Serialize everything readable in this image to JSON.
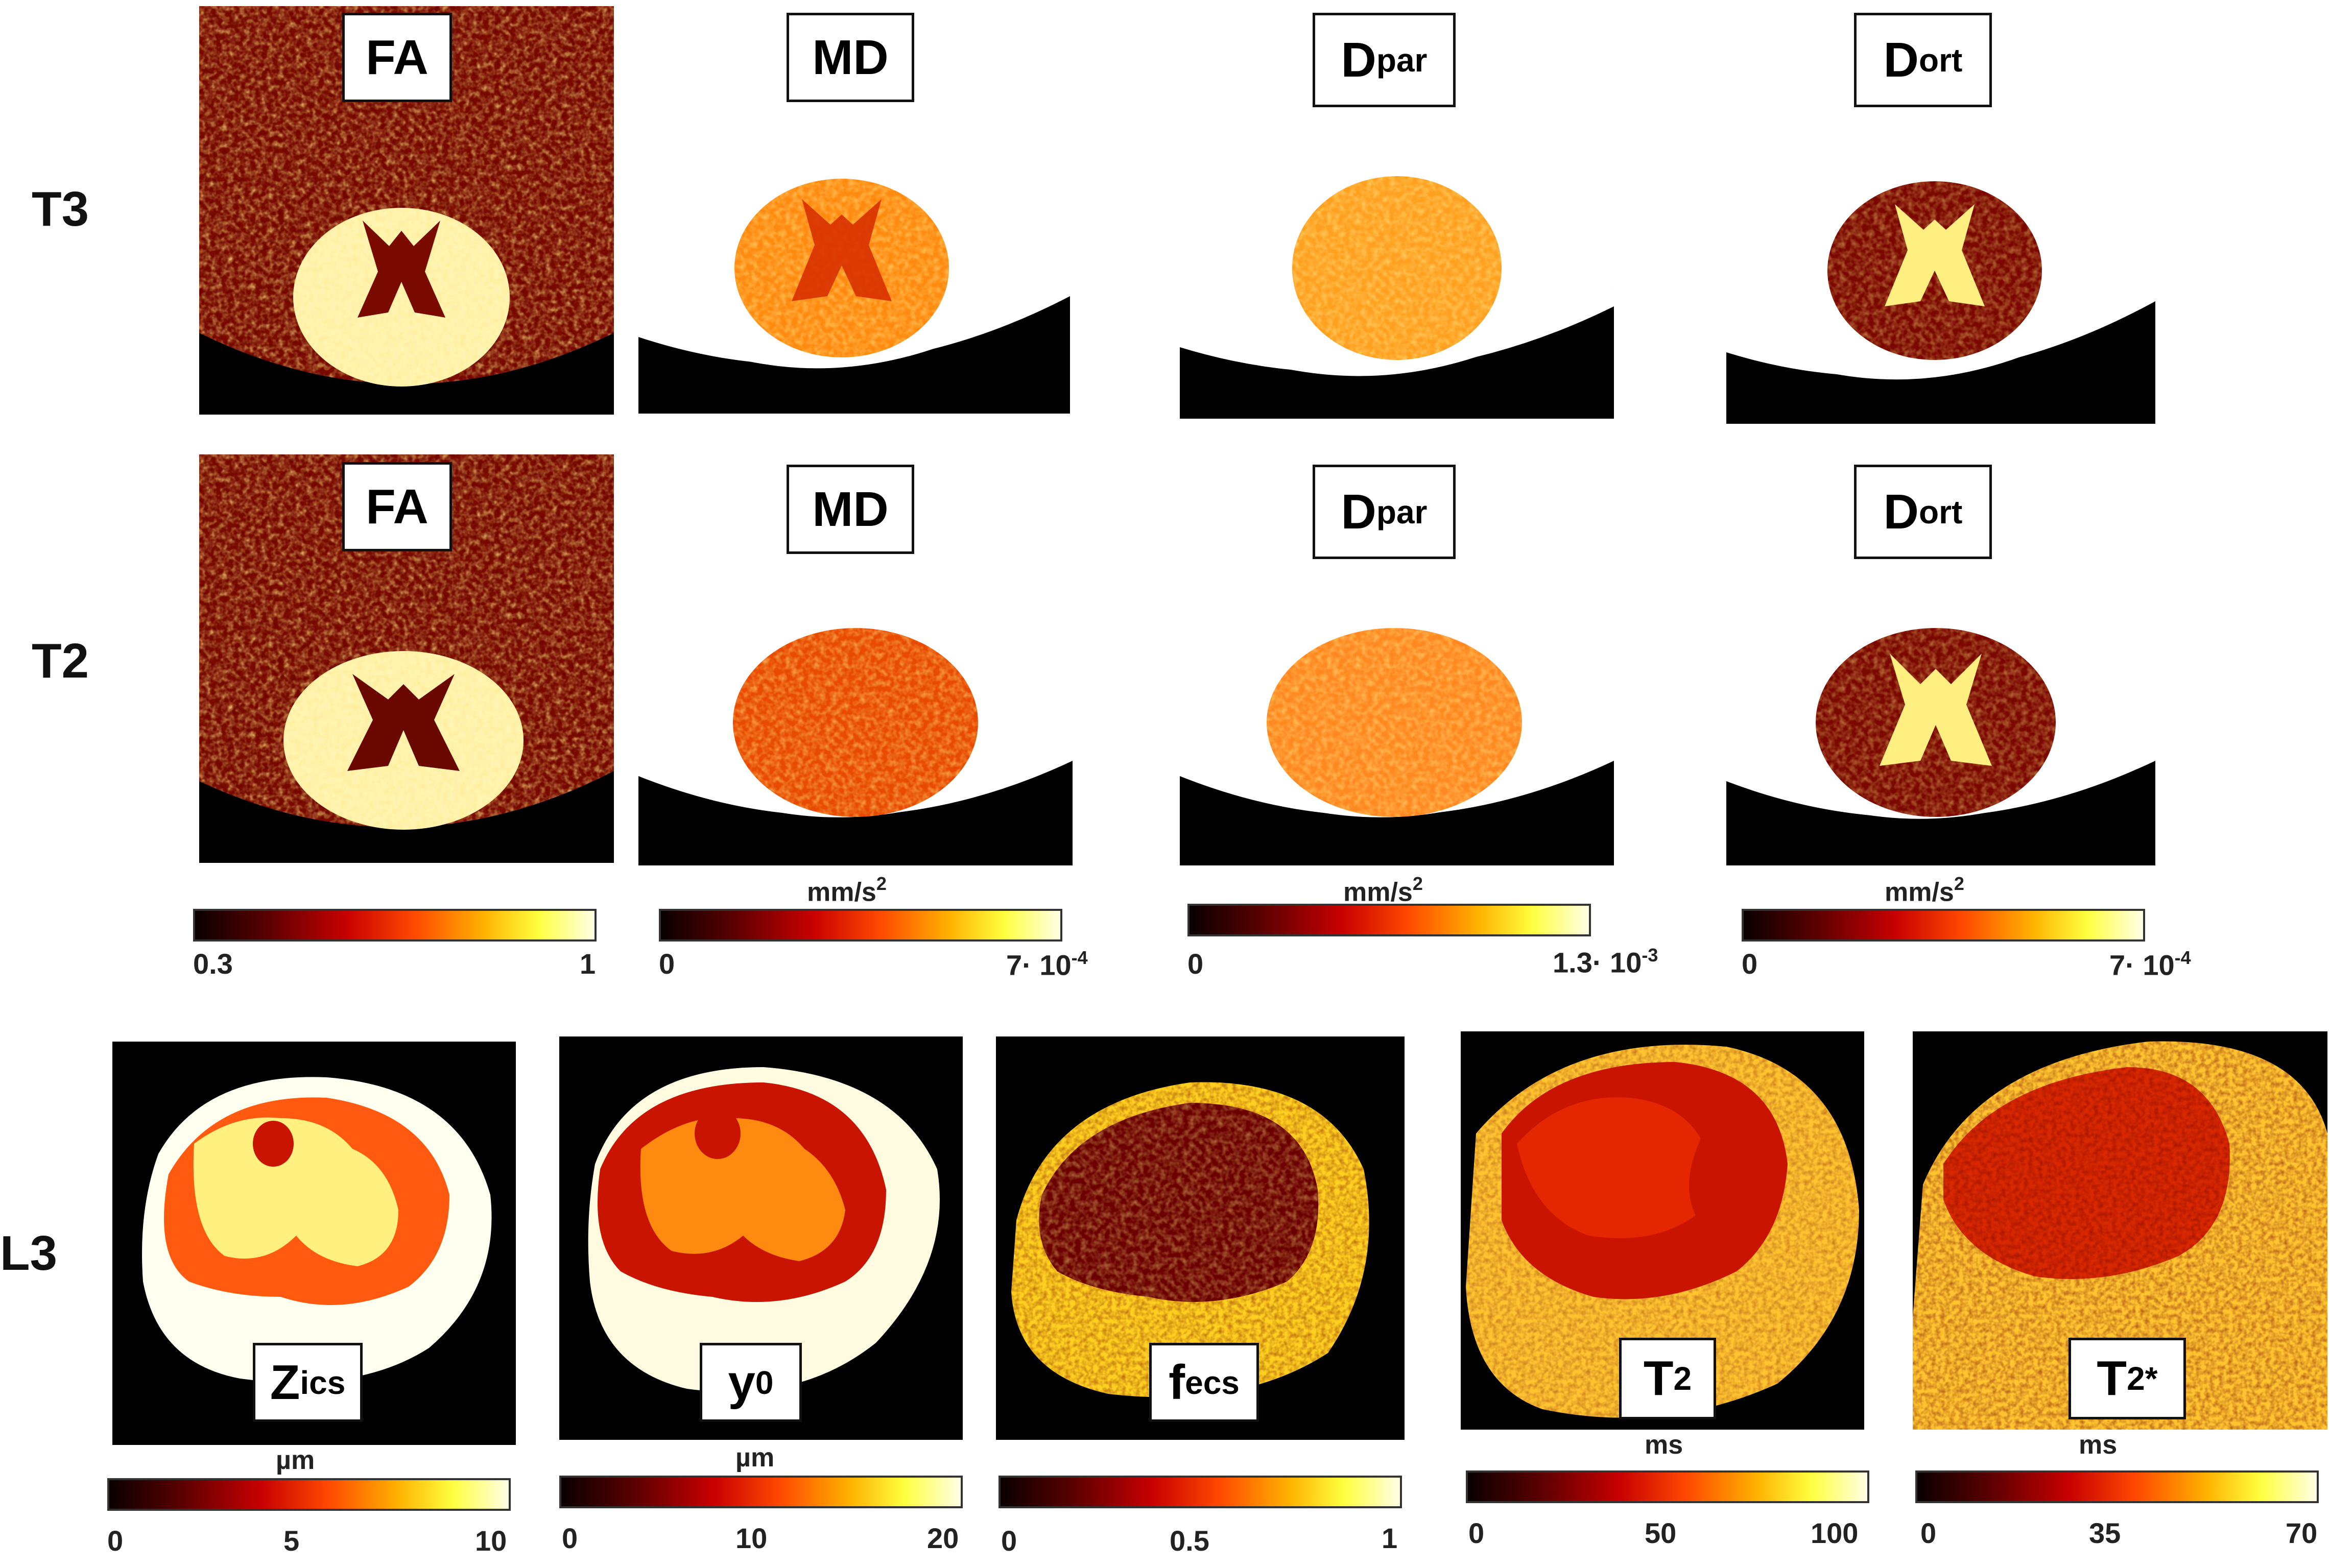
{
  "rows": {
    "t3": "T3",
    "t2": "T2",
    "l3": "L3"
  },
  "titles": {
    "fa": "FA",
    "md": "MD",
    "d_main": "D",
    "par_sub": "par",
    "ort_sub": "ort",
    "z_main": "Z",
    "ics_sub": "ics",
    "y_main": "y",
    "y_sub": "0",
    "f_main": "f",
    "ecs_sub": "ecs",
    "t_main": "T",
    "t_sub": "2",
    "star": "*"
  },
  "colorbars": {
    "fa": {
      "min": "0.3",
      "max": "1",
      "unit": ""
    },
    "md": {
      "min": "0",
      "max_base": "7· 10",
      "max_exp": "-4",
      "unit_base": "mm/s",
      "unit_exp": "2"
    },
    "dpar": {
      "min": "0",
      "max_base": "1.3· 10",
      "max_exp": "-3",
      "unit_base": "mm/s",
      "unit_exp": "2"
    },
    "dort": {
      "min": "0",
      "max_base": "7· 10",
      "max_exp": "-4",
      "unit_base": "mm/s",
      "unit_exp": "2"
    },
    "zics": {
      "min": "0",
      "mid": "5",
      "max": "10",
      "unit": "µm"
    },
    "y0": {
      "min": "0",
      "mid": "10",
      "max": "20",
      "unit": "µm"
    },
    "fecs": {
      "min": "0",
      "mid": "0.5",
      "max": "1",
      "unit": ""
    },
    "t2": {
      "min": "0",
      "mid": "50",
      "max": "100",
      "unit": "ms"
    },
    "t2s": {
      "min": "0",
      "mid": "35",
      "max": "70",
      "unit": "ms"
    }
  },
  "colors": {
    "background": "#000000",
    "dark_red": "#6a0000",
    "red": "#c81400",
    "orange": "#ff7a10",
    "yellow": "#ffe040",
    "pale": "#fffbe0"
  }
}
